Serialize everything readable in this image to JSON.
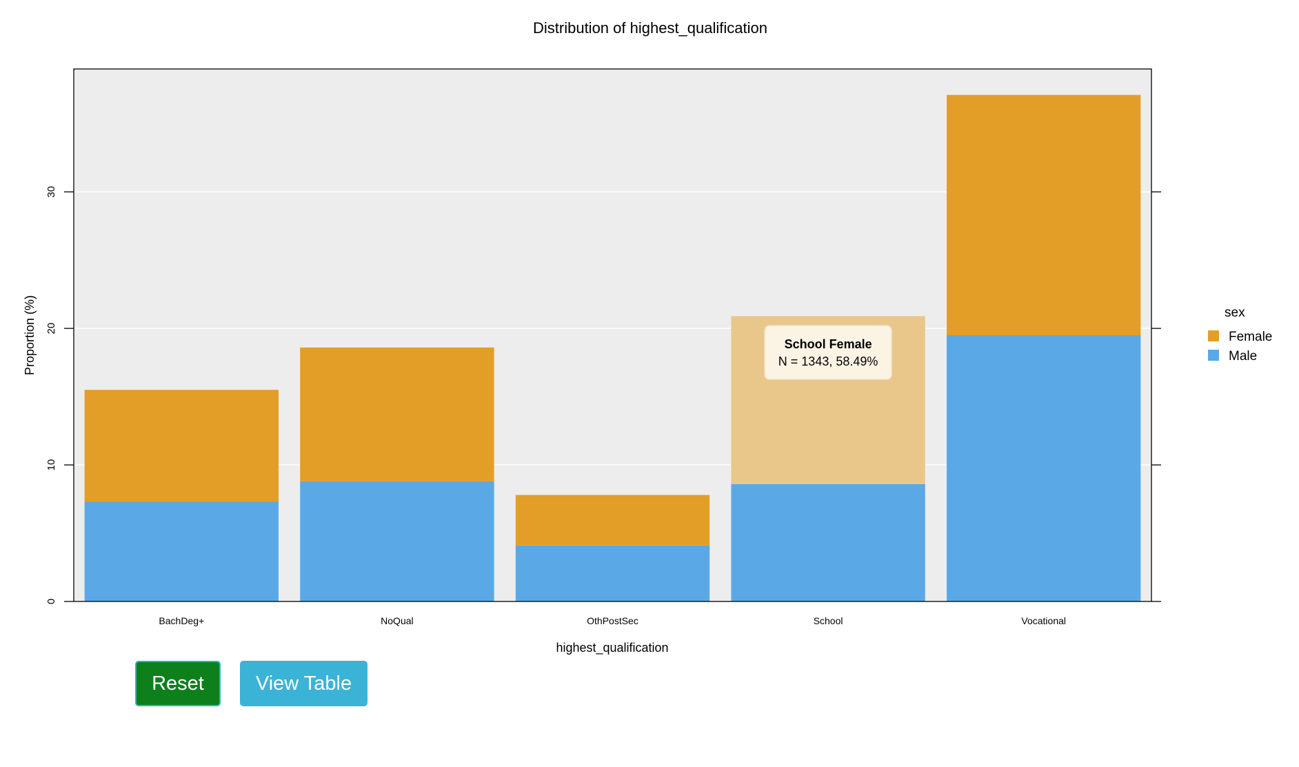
{
  "chart_data": {
    "type": "bar",
    "stacked": true,
    "title": "Distribution of highest_qualification",
    "xlabel": "highest_qualification",
    "ylabel": "Proportion (%)",
    "ylim": [
      0,
      39
    ],
    "yticks": [
      0,
      10,
      20,
      30
    ],
    "grid": true,
    "categories": [
      "BachDeg+",
      "NoQual",
      "OthPostSec",
      "School",
      "Vocational"
    ],
    "series": [
      {
        "name": "Male",
        "color": "#5aa9e6",
        "values": [
          7.3,
          8.8,
          4.1,
          8.6,
          19.5
        ]
      },
      {
        "name": "Female",
        "color": "#e39e27",
        "values": [
          8.2,
          9.8,
          3.7,
          12.3,
          17.6
        ]
      }
    ],
    "legend": {
      "title": "sex",
      "position": "right",
      "entries": [
        {
          "label": "Female",
          "color": "#e39e27"
        },
        {
          "label": "Male",
          "color": "#5aa9e6"
        }
      ]
    },
    "highlight": {
      "category": "School",
      "series": "Female",
      "faded_color": "#e9c78b",
      "tooltip_title": "School Female",
      "tooltip_text": "N = 1343, 58.49%"
    }
  },
  "buttons": {
    "reset_label": "Reset",
    "view_table_label": "View Table"
  }
}
